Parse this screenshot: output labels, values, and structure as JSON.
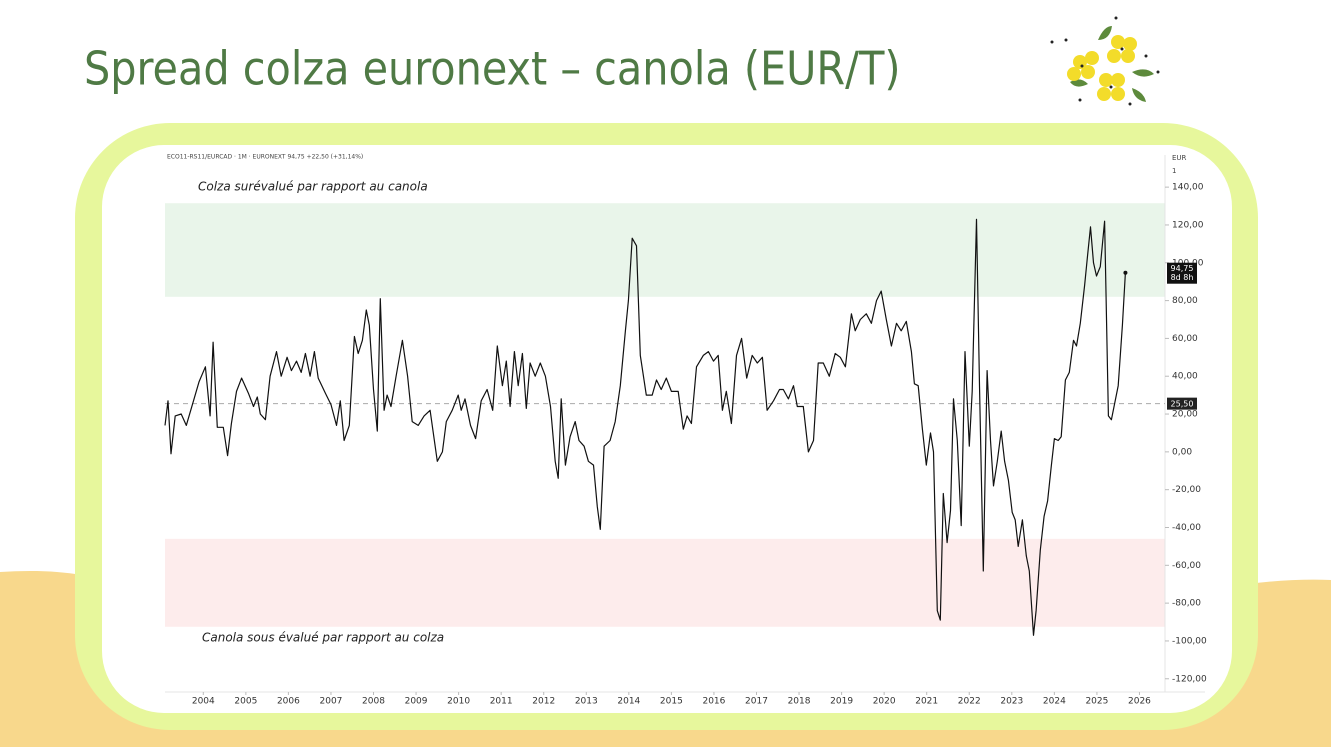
{
  "slide": {
    "title": "Spread colza euronext – canola (EUR/T)"
  },
  "chart_data": {
    "type": "line",
    "header": "ECO11-RS11/EURCAD · 1M · EURONEXT  94,75  +22,50 (+31,14%)",
    "y_unit": "EUR",
    "y_scale_label": "1",
    "xlim": [
      2003.1,
      2026.6
    ],
    "xticks": [
      2004,
      2005,
      2006,
      2007,
      2008,
      2009,
      2010,
      2011,
      2012,
      2013,
      2014,
      2015,
      2016,
      2017,
      2018,
      2019,
      2020,
      2021,
      2022,
      2023,
      2024,
      2025,
      2026
    ],
    "ylim": [
      -127,
      157
    ],
    "yticks": [
      {
        "value": -120,
        "label": "-120,00"
      },
      {
        "value": -100,
        "label": "-100,00"
      },
      {
        "value": -80,
        "label": "-80,00"
      },
      {
        "value": -60,
        "label": "-60,00"
      },
      {
        "value": -40,
        "label": "-40,00"
      },
      {
        "value": -20,
        "label": "-20,00"
      },
      {
        "value": 0,
        "label": "0,00"
      },
      {
        "value": 20,
        "label": "20,00"
      },
      {
        "value": 40,
        "label": "40,00"
      },
      {
        "value": 60,
        "label": "60,00"
      },
      {
        "value": 80,
        "label": "80,00"
      },
      {
        "value": 100,
        "label": "100,00"
      },
      {
        "value": 120,
        "label": "120,00"
      },
      {
        "value": 140,
        "label": "140,00"
      }
    ],
    "zones": [
      {
        "from": 82,
        "to": 131.5,
        "color": "#e9f5ea",
        "label": "Colza surévalué par rapport au canola"
      },
      {
        "from": -92.5,
        "to": -46,
        "color": "#fdecec",
        "label": "Canola sous évalué par rapport au colza"
      }
    ],
    "reference_line": {
      "value": 25.5,
      "label": "25,50",
      "color": "#aaaaaa"
    },
    "price_tag": {
      "value": 94.75,
      "label": "94,75",
      "countdown": "8d 8h"
    },
    "x": [
      2003.1,
      2003.17,
      2003.24,
      2003.34,
      2003.48,
      2003.6,
      2003.77,
      2003.9,
      2004.05,
      2004.16,
      2004.23,
      2004.33,
      2004.47,
      2004.57,
      2004.66,
      2004.78,
      2004.9,
      2005.06,
      2005.18,
      2005.27,
      2005.34,
      2005.46,
      2005.57,
      2005.72,
      2005.83,
      2005.97,
      2006.07,
      2006.19,
      2006.3,
      2006.4,
      2006.51,
      2006.61,
      2006.7,
      2006.87,
      2007.0,
      2007.13,
      2007.22,
      2007.31,
      2007.43,
      2007.55,
      2007.64,
      2007.74,
      2007.83,
      2007.9,
      2008.0,
      2008.09,
      2008.16,
      2008.25,
      2008.32,
      2008.41,
      2008.53,
      2008.68,
      2008.8,
      2008.91,
      2009.05,
      2009.19,
      2009.33,
      2009.5,
      2009.62,
      2009.71,
      2009.85,
      2009.99,
      2010.06,
      2010.15,
      2010.28,
      2010.4,
      2010.53,
      2010.67,
      2010.8,
      2010.91,
      2011.03,
      2011.12,
      2011.21,
      2011.31,
      2011.4,
      2011.5,
      2011.59,
      2011.68,
      2011.8,
      2011.92,
      2012.04,
      2012.16,
      2012.27,
      2012.34,
      2012.41,
      2012.51,
      2012.62,
      2012.74,
      2012.83,
      2012.95,
      2013.05,
      2013.17,
      2013.26,
      2013.33,
      2013.42,
      2013.56,
      2013.68,
      2013.8,
      2013.92,
      2013.99,
      2014.08,
      2014.18,
      2014.27,
      2014.41,
      2014.55,
      2014.65,
      2014.76,
      2014.88,
      2015.0,
      2015.16,
      2015.28,
      2015.37,
      2015.47,
      2015.59,
      2015.75,
      2015.87,
      2015.99,
      2016.1,
      2016.2,
      2016.29,
      2016.41,
      2016.53,
      2016.65,
      2016.77,
      2016.9,
      2017.02,
      2017.14,
      2017.25,
      2017.4,
      2017.54,
      2017.63,
      2017.75,
      2017.87,
      2017.96,
      2018.1,
      2018.22,
      2018.34,
      2018.45,
      2018.57,
      2018.71,
      2018.85,
      2018.97,
      2019.09,
      2019.23,
      2019.32,
      2019.44,
      2019.58,
      2019.7,
      2019.82,
      2019.93,
      2020.05,
      2020.17,
      2020.29,
      2020.4,
      2020.52,
      2020.64,
      2020.71,
      2020.8,
      2020.9,
      2020.99,
      2021.09,
      2021.16,
      2021.25,
      2021.32,
      2021.39,
      2021.48,
      2021.56,
      2021.63,
      2021.72,
      2021.81,
      2021.9,
      2022.0,
      2022.07,
      2022.17,
      2022.24,
      2022.33,
      2022.42,
      2022.5,
      2022.57,
      2022.66,
      2022.75,
      2022.83,
      2022.92,
      2023.01,
      2023.08,
      2023.15,
      2023.25,
      2023.34,
      2023.41,
      2023.51,
      2023.57,
      2023.67,
      2023.76,
      2023.84,
      2023.93,
      2024.0,
      2024.09,
      2024.16,
      2024.26,
      2024.35,
      2024.45,
      2024.52,
      2024.61,
      2024.71,
      2024.78,
      2024.85,
      2024.92,
      2024.99,
      2025.08,
      2025.18,
      2025.27,
      2025.34,
      2025.43,
      2025.5,
      2025.6,
      2025.67
    ],
    "series": [
      {
        "color": "#111111",
        "values": [
          14,
          27,
          -1,
          19,
          20,
          14,
          27,
          37,
          45,
          19,
          58,
          13,
          13,
          -2,
          15,
          32,
          39,
          31,
          24,
          29,
          20,
          17,
          40,
          53,
          40,
          50,
          43,
          48,
          42,
          52,
          40,
          53,
          39,
          31,
          25,
          14,
          27,
          6,
          14,
          61,
          52,
          59,
          75,
          67,
          33,
          11,
          81,
          22,
          30,
          24,
          40,
          59,
          40,
          16,
          14,
          19,
          22,
          -5,
          0,
          16,
          22,
          30,
          22,
          28,
          14,
          7,
          27,
          33,
          22,
          56,
          35,
          48,
          24,
          53,
          35,
          52,
          23,
          47,
          40,
          47,
          40,
          24,
          -5,
          -14,
          28,
          -7,
          8,
          16,
          6,
          3,
          -5,
          -7,
          -29,
          -41,
          3,
          6,
          16,
          35,
          64,
          80,
          113,
          109,
          51,
          30,
          30,
          38,
          33,
          39,
          32,
          32,
          12,
          19,
          15,
          45,
          51,
          53,
          48,
          51,
          22,
          32,
          15,
          51,
          60,
          39,
          51,
          47,
          50,
          22,
          27,
          33,
          33,
          28,
          35,
          24,
          24,
          0,
          6,
          47,
          47,
          40,
          52,
          50,
          45,
          73,
          64,
          70,
          73,
          68,
          80,
          85,
          70,
          56,
          68,
          64,
          69,
          53,
          36,
          35,
          12,
          -7,
          10,
          0,
          -84,
          -89,
          -22,
          -48,
          -31,
          28,
          6,
          -39,
          53,
          3,
          32,
          123,
          35,
          -63,
          43,
          6,
          -18,
          -5,
          11,
          -5,
          -15,
          -32,
          -36,
          -50,
          -36,
          -55,
          -63,
          -97,
          -84,
          -52,
          -34,
          -26,
          -7,
          7,
          6,
          8,
          38,
          42,
          59,
          56,
          68,
          88,
          104,
          119,
          100,
          93,
          98,
          122,
          19,
          17,
          27,
          35,
          67,
          94.75
        ]
      }
    ]
  }
}
